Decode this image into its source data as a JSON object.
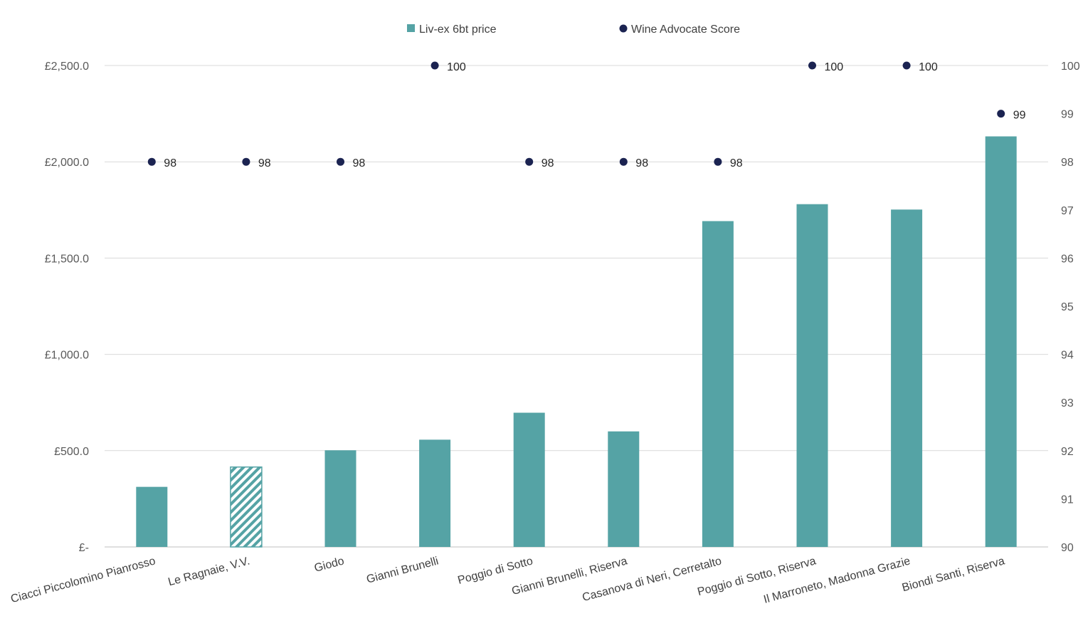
{
  "chart_data": {
    "type": "bar",
    "title": "",
    "xlabel": "",
    "ylabel": "",
    "categories": [
      "Ciacci Piccolomino Pianrosso",
      "Le Ragnaie, V.V.",
      "Giodo",
      "Gianni Brunelli",
      "Poggio di Sotto",
      "Gianni Brunelli, Riserva",
      "Casanova di Neri, Cerretalto",
      "Poggio di Sotto, Riserva",
      "Il Marroneto, Madonna  Grazie",
      "Biondi Santi, Riserva"
    ],
    "series": [
      {
        "name": "Liv-ex 6bt price",
        "type": "bar",
        "axis": "left",
        "color": "#55A3A5",
        "values": [
          312,
          415,
          502,
          557,
          697,
          600,
          1692,
          1780,
          1752,
          2132
        ],
        "hatched_index": 1
      },
      {
        "name": "Wine Advocate Score",
        "type": "scatter",
        "axis": "right",
        "color": "#1B2351",
        "values": [
          98,
          98,
          98,
          100,
          98,
          98,
          98,
          100,
          100,
          99
        ],
        "labels": [
          "98",
          "98",
          "98",
          "100",
          "98",
          "98",
          "98",
          "100",
          "100",
          "99"
        ]
      }
    ],
    "ylim": [
      0,
      2500
    ],
    "y2lim": [
      90,
      100
    ],
    "left_ticks": [
      "£-",
      "£500.0",
      "£1,000.0",
      "£1,500.0",
      "£2,000.0",
      "£2,500.0"
    ],
    "right_ticks": [
      "90",
      "91",
      "92",
      "93",
      "94",
      "95",
      "96",
      "97",
      "98",
      "99",
      "100"
    ],
    "grid": true,
    "legend_position": "top-center"
  }
}
